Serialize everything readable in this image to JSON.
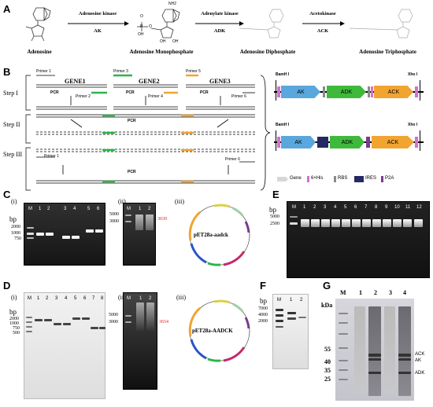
{
  "panelA": {
    "letter": "A",
    "molecules": [
      "Adenosine",
      "Adenosine Monophosphate",
      "Adenosine Diphosphate",
      "Adenosine Triphosphate"
    ],
    "enzymes": [
      {
        "name": "Adenosine kinase",
        "abbr": "AK"
      },
      {
        "name": "Adenylate kinase",
        "abbr": "ADK"
      },
      {
        "name": "Acetokinase",
        "abbr": "ACK"
      }
    ],
    "amp_label_nh2": "NH2",
    "amp_label_oh": [
      "OH",
      "OH"
    ],
    "amp_label_p": [
      "O",
      "P",
      "O",
      "OH"
    ]
  },
  "panelB": {
    "letter": "B",
    "steps": [
      "Step I",
      "Step II",
      "Step III"
    ],
    "genes": [
      "GENE1",
      "GENE2",
      "GENE3"
    ],
    "primers": [
      "Primer 1",
      "Primer 2",
      "Primer 3",
      "Primer 4",
      "Primer 5",
      "Primer 6"
    ],
    "pcr": "PCR",
    "construct": {
      "site_left": "BamH I",
      "site_right": "Xho I",
      "segments": [
        "AK",
        "ADK",
        "ACK"
      ]
    },
    "legend": [
      "Gene",
      "6×His",
      "RBS",
      "IRES",
      "P2A"
    ],
    "colors": {
      "ak": "#5aa7dd",
      "adk": "#3fb93b",
      "ack": "#f2a431",
      "his": "#d56fd2",
      "rbs": "#8a8a8a",
      "ires": "#232a63",
      "p2a": "#7a3a8e",
      "gene": "#d7d7d7",
      "primer_green": "#2fb34a",
      "primer_orange": "#f2a431"
    }
  },
  "panelC": {
    "letter": "C",
    "sub": [
      "(i)",
      "(ii)",
      "(iii)"
    ],
    "gel1_lanes": [
      "M",
      "1",
      "2",
      "3",
      "4",
      "5",
      "6"
    ],
    "gel2_lanes": [
      "M",
      "1",
      "2"
    ],
    "bp": "bp",
    "markers1": [
      "2000",
      "1000",
      "750"
    ],
    "markers2": [
      "5000",
      "3000"
    ],
    "band_label": "3039",
    "plasmid": "pET28a-aadck"
  },
  "panelD": {
    "letter": "D",
    "sub": [
      "(i)",
      "(ii)",
      "(iii)"
    ],
    "gel1_lanes": [
      "M",
      "1",
      "2",
      "3",
      "4",
      "5",
      "6",
      "7",
      "8"
    ],
    "gel2_lanes": [
      "M",
      "1",
      "2"
    ],
    "bp": "bp",
    "markers1": [
      "2000",
      "1000",
      "750",
      "500"
    ],
    "markers2": [
      "5000",
      "3000"
    ],
    "band_label": "3654",
    "plasmid": "pET28a-AADCK"
  },
  "panelE": {
    "letter": "E",
    "lanes": [
      "M",
      "1",
      "2",
      "3",
      "4",
      "5",
      "6",
      "7",
      "8",
      "9",
      "10",
      "11",
      "12"
    ],
    "bp": "bp",
    "markers": [
      "5000",
      "2500"
    ]
  },
  "panelF": {
    "letter": "F",
    "lanes": [
      "M",
      "1",
      "2"
    ],
    "bp": "bp",
    "markers": [
      "7000",
      "4000",
      "2000"
    ]
  },
  "panelG": {
    "letter": "G",
    "lanes": [
      "M",
      "1",
      "2",
      "3",
      "4"
    ],
    "unit": "kDa",
    "markers": [
      "55",
      "40",
      "35",
      "25"
    ],
    "bands": [
      "ACK",
      "AK",
      "ADK"
    ]
  }
}
